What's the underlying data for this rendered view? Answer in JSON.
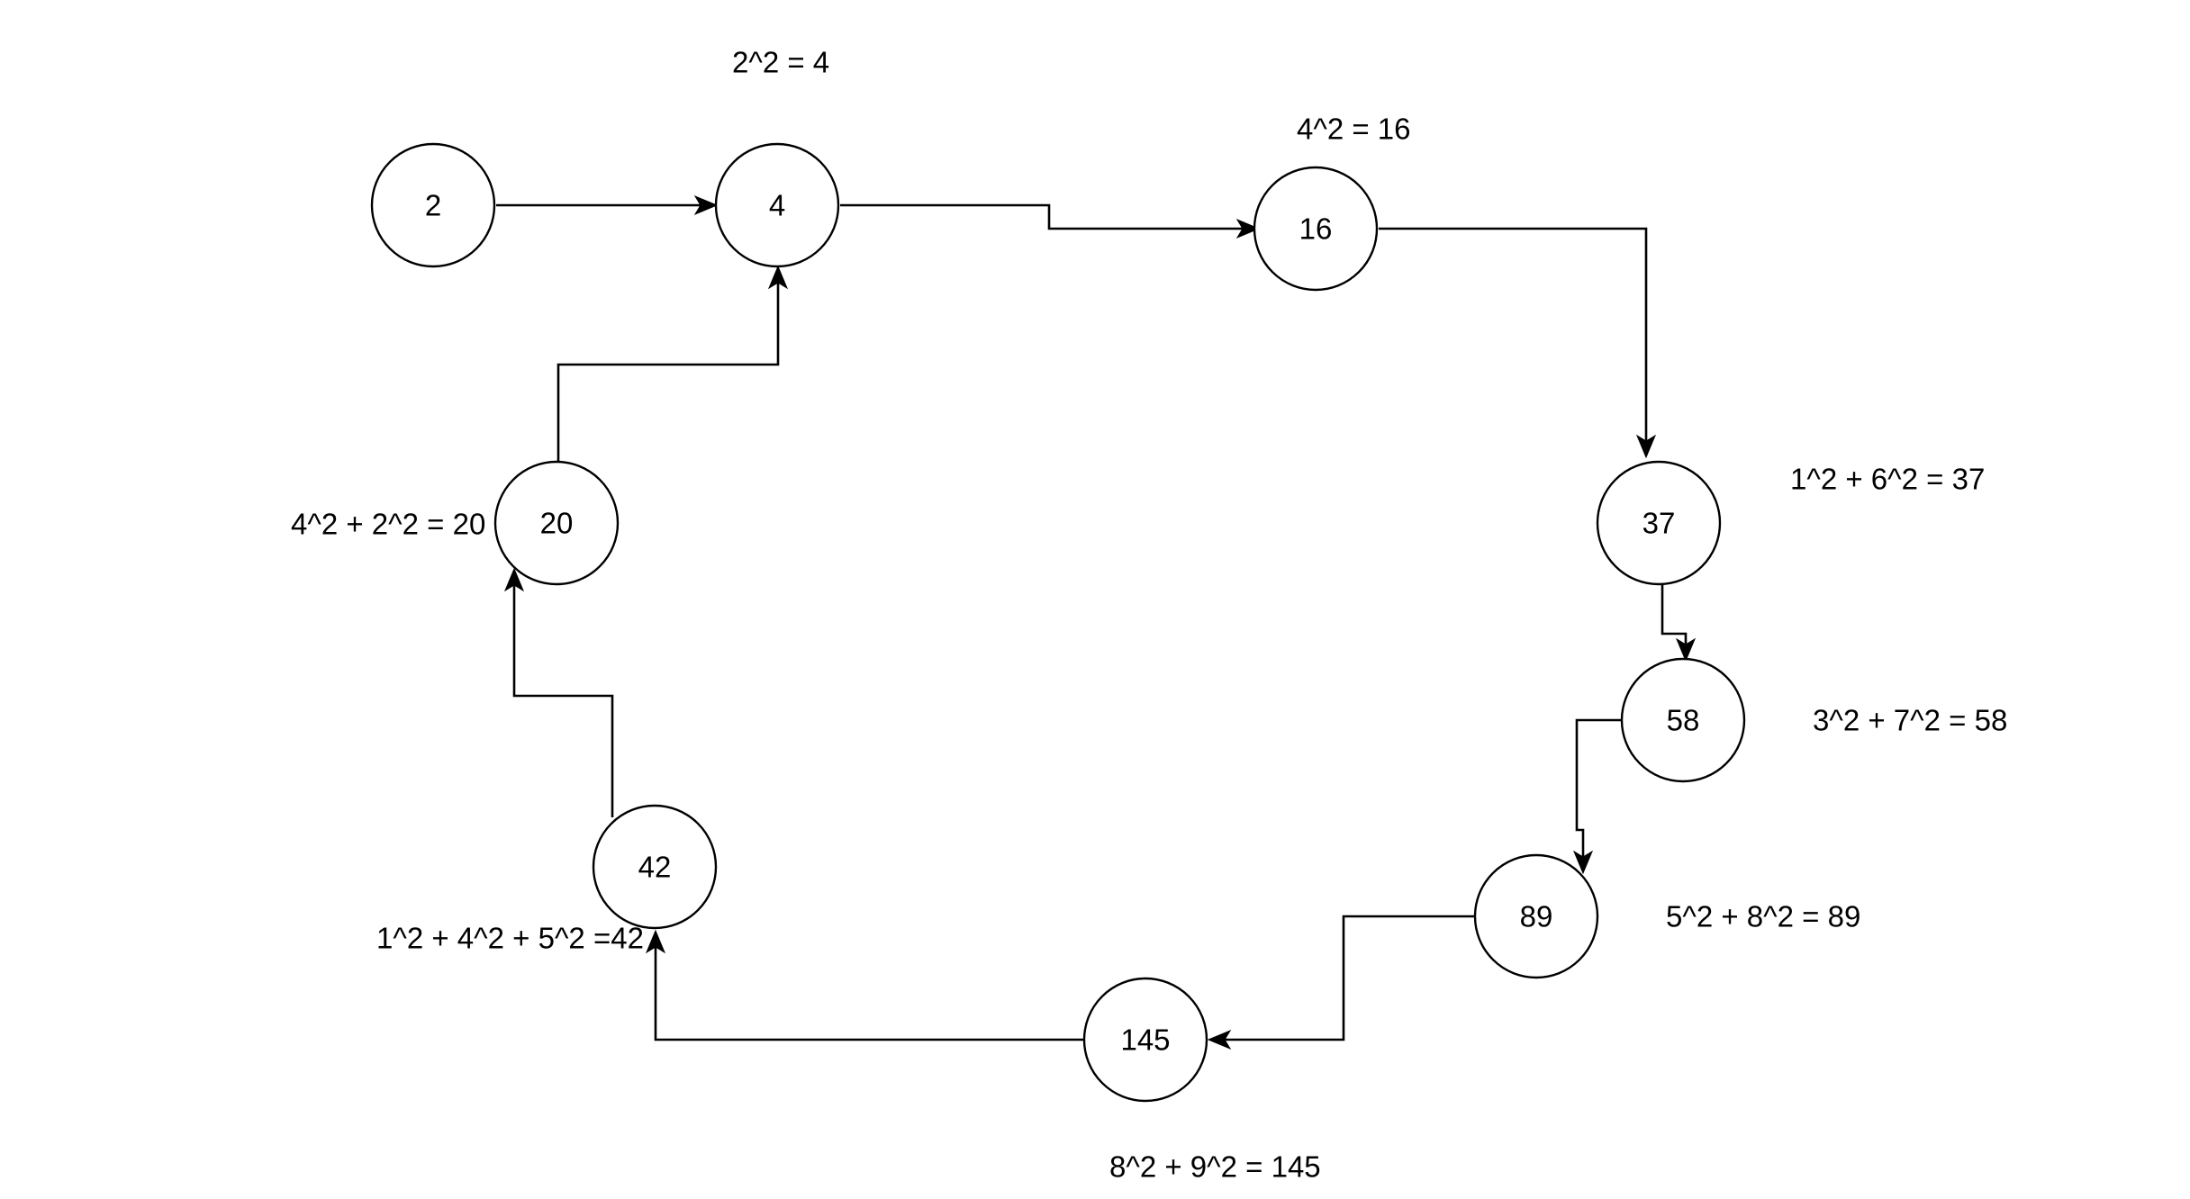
{
  "nodes": [
    {
      "id": "n2",
      "label": "2"
    },
    {
      "id": "n4",
      "label": "4"
    },
    {
      "id": "n16",
      "label": "16"
    },
    {
      "id": "n37",
      "label": "37"
    },
    {
      "id": "n58",
      "label": "58"
    },
    {
      "id": "n89",
      "label": "89"
    },
    {
      "id": "n145",
      "label": "145"
    },
    {
      "id": "n42",
      "label": "42"
    },
    {
      "id": "n20",
      "label": "20"
    }
  ],
  "annotations": {
    "a4": "2^2 = 4",
    "a16": "4^2 = 16",
    "a37": "1^2 + 6^2 = 37",
    "a58": "3^2 + 7^2 = 58",
    "a89": "5^2 + 8^2 = 89",
    "a145": "8^2 + 9^2 = 145",
    "a42": "1^2 + 4^2 + 5^2 =42",
    "a20": "4^2 + 2^2 = 20"
  },
  "edges": [
    {
      "from": "n2",
      "to": "n4"
    },
    {
      "from": "n4",
      "to": "n16"
    },
    {
      "from": "n16",
      "to": "n37"
    },
    {
      "from": "n37",
      "to": "n58"
    },
    {
      "from": "n58",
      "to": "n89"
    },
    {
      "from": "n89",
      "to": "n145"
    },
    {
      "from": "n145",
      "to": "n42"
    },
    {
      "from": "n42",
      "to": "n20"
    },
    {
      "from": "n20",
      "to": "n4"
    }
  ],
  "colors": {
    "stroke": "#000000",
    "background": "#ffffff"
  }
}
